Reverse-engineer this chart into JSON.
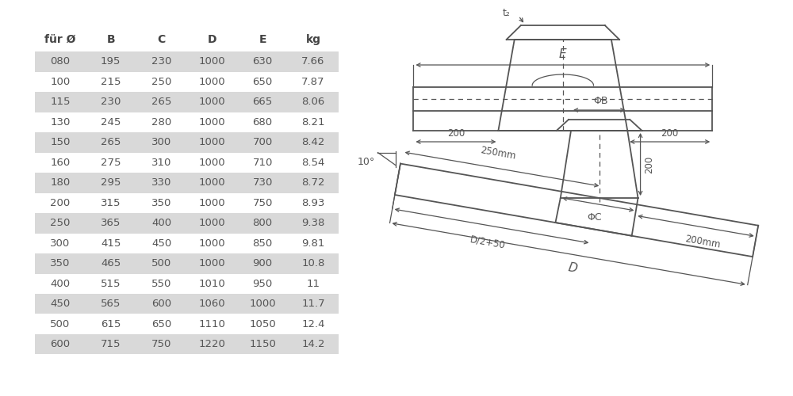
{
  "table_headers": [
    "für Ø",
    "B",
    "C",
    "D",
    "E",
    "kg"
  ],
  "table_rows": [
    [
      "080",
      "195",
      "230",
      "1000",
      "630",
      "7.66"
    ],
    [
      "100",
      "215",
      "250",
      "1000",
      "650",
      "7.87"
    ],
    [
      "115",
      "230",
      "265",
      "1000",
      "665",
      "8.06"
    ],
    [
      "130",
      "245",
      "280",
      "1000",
      "680",
      "8.21"
    ],
    [
      "150",
      "265",
      "300",
      "1000",
      "700",
      "8.42"
    ],
    [
      "160",
      "275",
      "310",
      "1000",
      "710",
      "8.54"
    ],
    [
      "180",
      "295",
      "330",
      "1000",
      "730",
      "8.72"
    ],
    [
      "200",
      "315",
      "350",
      "1000",
      "750",
      "8.93"
    ],
    [
      "250",
      "365",
      "400",
      "1000",
      "800",
      "9.38"
    ],
    [
      "300",
      "415",
      "450",
      "1000",
      "850",
      "9.81"
    ],
    [
      "350",
      "465",
      "500",
      "1000",
      "900",
      "10.8"
    ],
    [
      "400",
      "515",
      "550",
      "1010",
      "950",
      "11"
    ],
    [
      "450",
      "565",
      "600",
      "1060",
      "1000",
      "11.7"
    ],
    [
      "500",
      "615",
      "650",
      "1110",
      "1050",
      "12.4"
    ],
    [
      "600",
      "715",
      "750",
      "1220",
      "1150",
      "14.2"
    ]
  ],
  "shaded_rows": [
    0,
    2,
    4,
    6,
    8,
    10,
    12,
    14
  ],
  "bg_color": "#ffffff",
  "shade_color": "#d9d9d9",
  "text_color": "#555555",
  "header_color": "#444444",
  "line_color": "#555555"
}
